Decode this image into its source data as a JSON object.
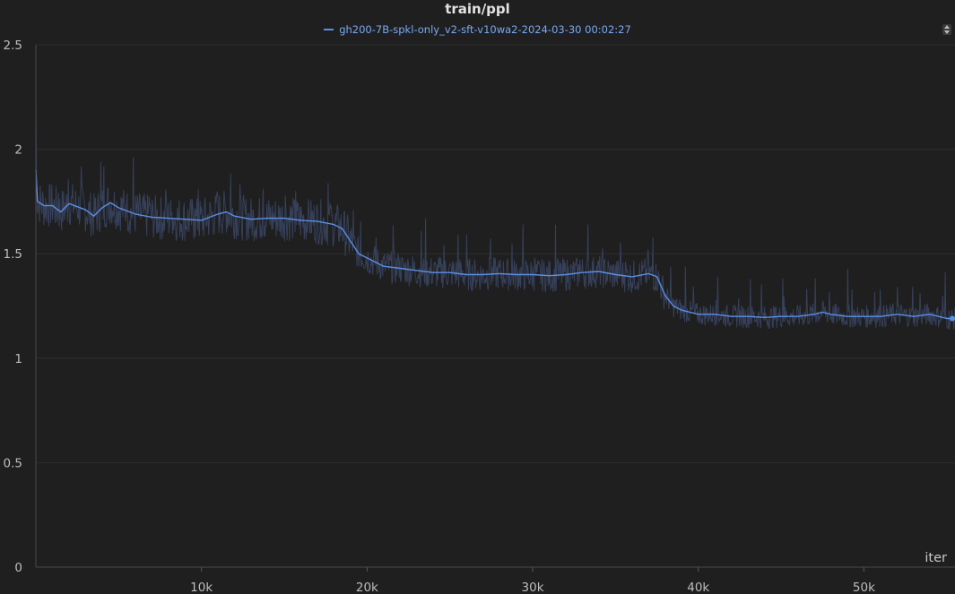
{
  "chart_data": {
    "type": "line",
    "title": "train/ppl",
    "xlabel": "iter",
    "ylabel": "",
    "xlim": [
      0,
      55500
    ],
    "ylim": [
      0,
      2.5
    ],
    "x_ticks": [
      10000,
      20000,
      30000,
      40000,
      50000
    ],
    "x_tick_labels": [
      "10k",
      "20k",
      "30k",
      "40k",
      "50k"
    ],
    "y_ticks": [
      0,
      0.5,
      1,
      1.5,
      2,
      2.5
    ],
    "y_tick_labels": [
      "0",
      "0.5",
      "1",
      "1.5",
      "2",
      "2.5"
    ],
    "grid": true,
    "legend_position": "top-center",
    "series": [
      {
        "name": "gh200-7B-spkl-only_v2-sft-v10wa2-2024-03-30 00:02:27",
        "color": "#5b8fe6",
        "raw_color": "#36405a",
        "x": [
          0,
          100,
          500,
          1000,
          1500,
          2000,
          3000,
          3500,
          4000,
          4500,
          5000,
          6000,
          7000,
          8000,
          9000,
          10000,
          11000,
          11500,
          12000,
          13000,
          14000,
          15000,
          16000,
          17000,
          18000,
          18500,
          19000,
          19500,
          20000,
          21000,
          22000,
          23000,
          24000,
          25000,
          26000,
          27000,
          28000,
          29000,
          30000,
          31000,
          32000,
          33000,
          34000,
          35000,
          36000,
          37000,
          37500,
          38000,
          38500,
          39000,
          40000,
          41000,
          42000,
          43000,
          44000,
          45000,
          46000,
          47000,
          47500,
          48000,
          49000,
          50000,
          51000,
          52000,
          53000,
          54000,
          55000,
          55500
        ],
        "values": [
          1.9,
          1.75,
          1.73,
          1.73,
          1.7,
          1.74,
          1.71,
          1.68,
          1.72,
          1.745,
          1.72,
          1.69,
          1.675,
          1.67,
          1.665,
          1.66,
          1.69,
          1.7,
          1.68,
          1.665,
          1.67,
          1.67,
          1.66,
          1.655,
          1.64,
          1.62,
          1.56,
          1.5,
          1.48,
          1.44,
          1.43,
          1.42,
          1.41,
          1.41,
          1.4,
          1.4,
          1.405,
          1.4,
          1.4,
          1.395,
          1.4,
          1.41,
          1.415,
          1.4,
          1.39,
          1.405,
          1.39,
          1.3,
          1.25,
          1.23,
          1.21,
          1.21,
          1.2,
          1.2,
          1.195,
          1.2,
          1.2,
          1.21,
          1.22,
          1.21,
          1.2,
          1.2,
          1.2,
          1.21,
          1.2,
          1.21,
          1.19,
          1.19
        ]
      }
    ]
  }
}
